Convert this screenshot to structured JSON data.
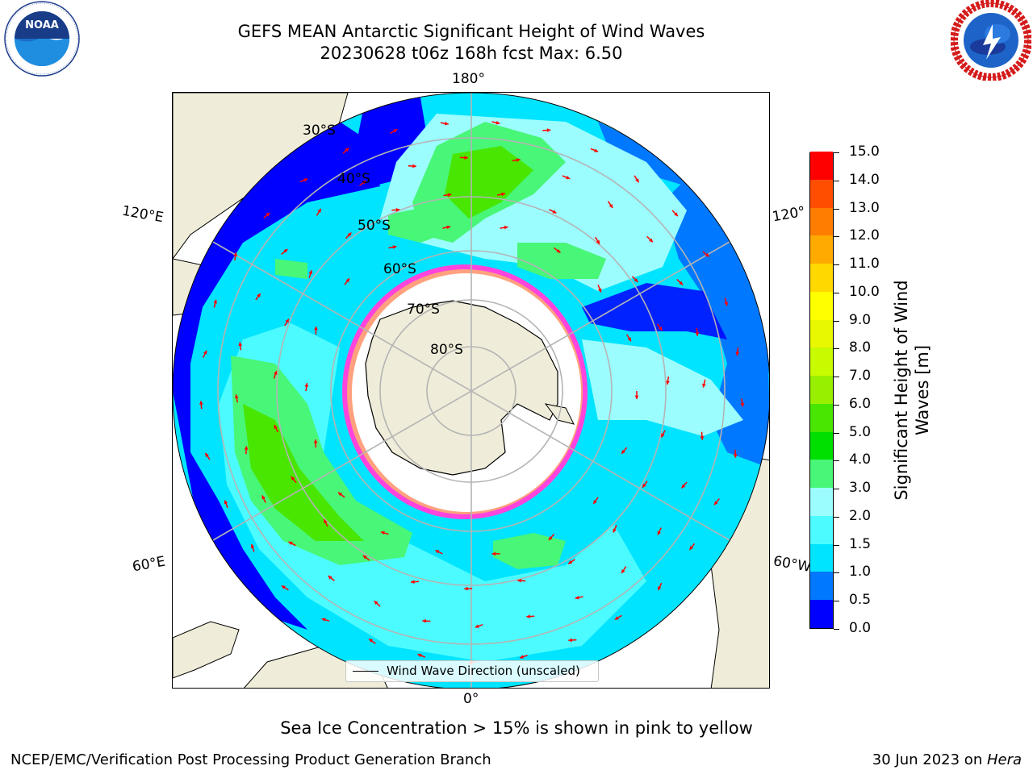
{
  "title": {
    "line1": "GEFS MEAN Antarctic Significant Height of Wind Waves",
    "line2": "20230628 t06z 168h fcst   Max: 6.50"
  },
  "map": {
    "projection": "south-polar-stereographic",
    "longitude_labels": {
      "top": "180°",
      "bottom": "0°",
      "upper_left": "120°E",
      "upper_right": "120°",
      "lower_left": "60°E",
      "lower_right": "60°W"
    },
    "latitude_labels": [
      "30°S",
      "40°S",
      "50°S",
      "60°S",
      "70°S",
      "80°S"
    ],
    "legend": {
      "label": "Wind Wave Direction (unscaled)"
    },
    "colors": {
      "land": "#efedd9",
      "ocean_white": "#ffffff",
      "grid": "#b4b4b4",
      "arrow": "#ff0000",
      "ice_pink": "#ff44dd",
      "ice_yellow": "#ffe040"
    }
  },
  "colorbar": {
    "title": "Significant Height of Wind Waves [m]",
    "ticks": [
      "0.0",
      "0.5",
      "1.0",
      "1.5",
      "2.0",
      "3.0",
      "4.0",
      "5.0",
      "6.0",
      "7.0",
      "8.0",
      "9.0",
      "10.0",
      "11.0",
      "12.0",
      "13.0",
      "14.0",
      "15.0"
    ],
    "colors": [
      "#0000ff",
      "#0078ff",
      "#00e4ff",
      "#4cfbff",
      "#9cfdff",
      "#48f678",
      "#00e000",
      "#48e600",
      "#98f000",
      "#c8fa00",
      "#e8f800",
      "#ffff00",
      "#ffd800",
      "#ffaa00",
      "#ff7d00",
      "#ff4e00",
      "#ff0000"
    ]
  },
  "note": "Sea Ice Concentration > 15% is shown in pink to yellow",
  "footer": {
    "left": "NCEP/EMC/Verification Post Processing Product Generation Branch",
    "right_date": "30 Jun 2023 on ",
    "right_host": "Hera"
  },
  "logos": {
    "noaa": {
      "text": "NOAA",
      "ring_text": "NATIONAL OCEANIC AND ATMOSPHERIC ADMINISTRATION"
    },
    "nws": {
      "ring_text": "NATIONAL WEATHER SERVICE"
    }
  }
}
